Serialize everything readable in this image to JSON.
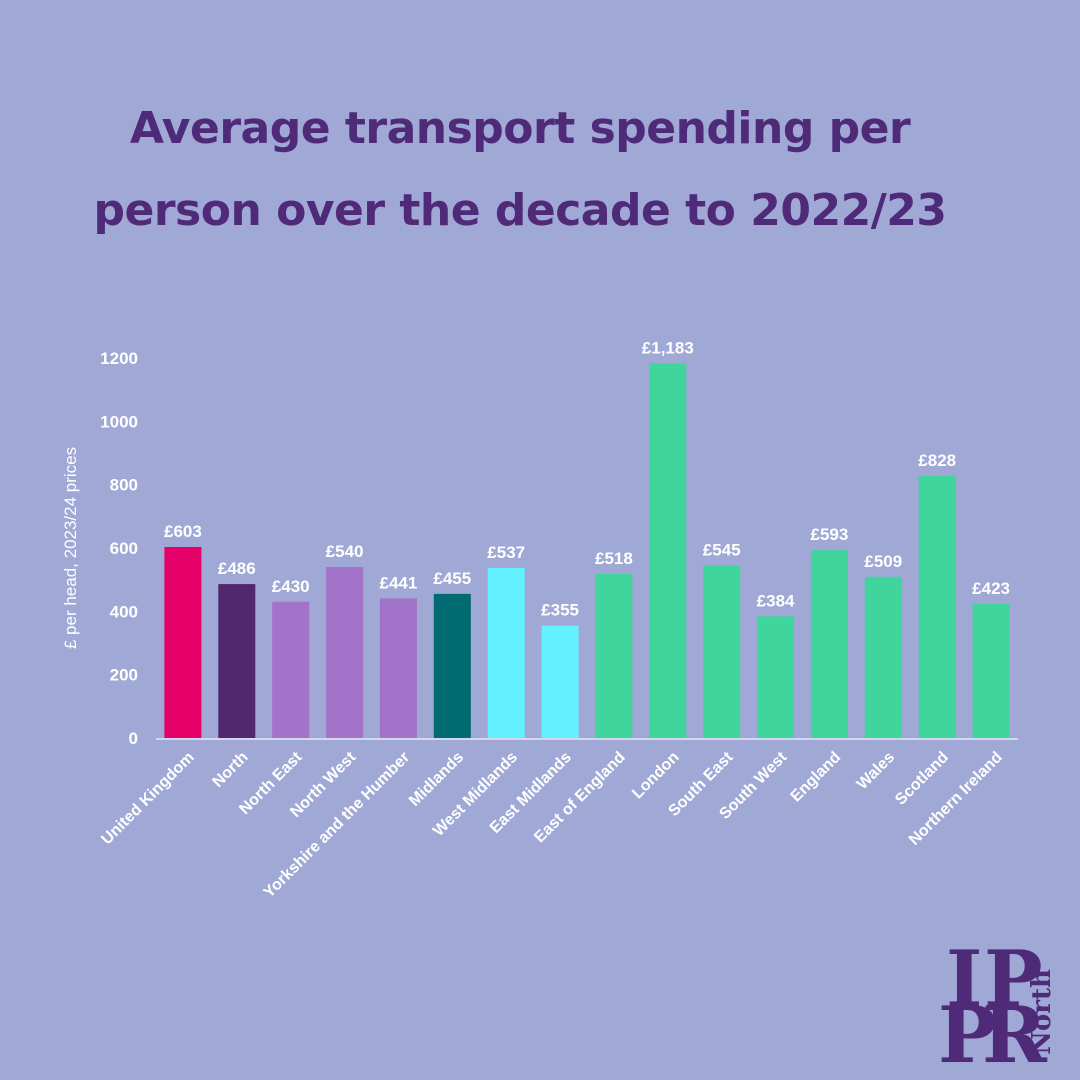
{
  "title_lines": [
    "Average transport spending per",
    "person over the decade to 2022/23"
  ],
  "logo": {
    "letters": [
      "I",
      "P",
      "P",
      "R"
    ],
    "word": "North",
    "color": "#4f2a78"
  },
  "chart_data": {
    "type": "bar",
    "title": "Average transport spending per person over the decade to 2022/23",
    "ylabel": "£ per head, 2023/24 prices",
    "xlabel": "",
    "ylim": [
      0,
      1200
    ],
    "yticks": [
      0,
      200,
      400,
      600,
      800,
      1000,
      1200
    ],
    "grid": false,
    "categories": [
      "United Kingdom",
      "North",
      "North East",
      "North West",
      "Yorkshire and the Humber",
      "Midlands",
      "West Midlands",
      "East Midlands",
      "East of England",
      "London",
      "South East",
      "South West",
      "England",
      "Wales",
      "Scotland",
      "Northern Ireland"
    ],
    "values": [
      603,
      486,
      430,
      540,
      441,
      455,
      537,
      355,
      518,
      1183,
      545,
      384,
      593,
      509,
      828,
      423
    ],
    "labels": [
      "£603",
      "£486",
      "£430",
      "£540",
      "£441",
      "£455",
      "£537",
      "£355",
      "£518",
      "£1,183",
      "£545",
      "£384",
      "£593",
      "£509",
      "£828",
      "£423"
    ],
    "colors": [
      "#e5006a",
      "#51286f",
      "#a372c9",
      "#a372c9",
      "#a372c9",
      "#006b70",
      "#63f1ff",
      "#63f1ff",
      "#3fd59c",
      "#3fd59c",
      "#3fd59c",
      "#3fd59c",
      "#3fd59c",
      "#3fd59c",
      "#3fd59c",
      "#3fd59c"
    ]
  }
}
